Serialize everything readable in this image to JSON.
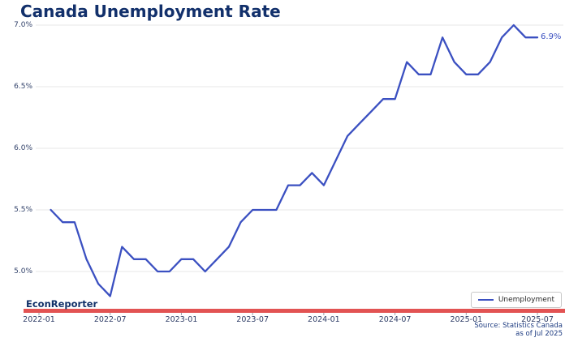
{
  "title": "Canada Unemployment Rate",
  "watermark": "EconReporter",
  "source": {
    "line1": "Source: Statistics Canada",
    "line2": "as of Jul 2025"
  },
  "legend": {
    "label": "Unemployment"
  },
  "annotation": {
    "text": "6.9%"
  },
  "colors": {
    "line": "#3b50c1",
    "title": "#12306b",
    "axis_labels": "#2e3d66",
    "gridline": "#e7e7e7",
    "tick_mark": "#9aa0aa",
    "red_stripe": "#e25353",
    "annotation": "#3b50c1",
    "source_text": "#1d3b80",
    "background": "#ffffff"
  },
  "chart_data": {
    "type": "line",
    "title": "Canada Unemployment Rate",
    "xlabel": "",
    "ylabel": "",
    "grid": true,
    "legend_position": "bottom-right",
    "ylim": [
      4.68,
      7.03
    ],
    "y_ticks": [
      "5.0%",
      "5.5%",
      "6.0%",
      "6.5%",
      "7.0%"
    ],
    "y_tick_values": [
      5.0,
      5.5,
      6.0,
      6.5,
      7.0
    ],
    "x_ticks": [
      "2022-01",
      "2022-07",
      "2023-01",
      "2023-07",
      "2024-01",
      "2024-07",
      "2025-01",
      "2025-07"
    ],
    "x_tick_month_offsets": [
      0,
      6,
      12,
      18,
      24,
      30,
      36,
      42
    ],
    "x": [
      "2022-02",
      "2022-03",
      "2022-04",
      "2022-05",
      "2022-06",
      "2022-07",
      "2022-08",
      "2022-09",
      "2022-10",
      "2022-11",
      "2022-12",
      "2023-01",
      "2023-02",
      "2023-03",
      "2023-04",
      "2023-05",
      "2023-06",
      "2023-07",
      "2023-08",
      "2023-09",
      "2023-10",
      "2023-11",
      "2023-12",
      "2024-01",
      "2024-02",
      "2024-03",
      "2024-04",
      "2024-05",
      "2024-06",
      "2024-07",
      "2024-08",
      "2024-09",
      "2024-10",
      "2024-11",
      "2024-12",
      "2025-01",
      "2025-02",
      "2025-03",
      "2025-04",
      "2025-05",
      "2025-06",
      "2025-07"
    ],
    "series": [
      {
        "name": "Unemployment",
        "values": [
          5.5,
          5.4,
          5.4,
          5.1,
          4.9,
          4.8,
          5.2,
          5.1,
          5.1,
          5.0,
          5.0,
          5.1,
          5.1,
          5.0,
          5.1,
          5.2,
          5.4,
          5.5,
          5.5,
          5.5,
          5.7,
          5.7,
          5.8,
          5.7,
          5.9,
          6.1,
          6.2,
          6.3,
          6.4,
          6.4,
          6.7,
          6.6,
          6.6,
          6.9,
          6.7,
          6.6,
          6.6,
          6.7,
          6.9,
          7.0,
          6.9,
          6.9
        ]
      }
    ],
    "last_value_label": "6.9%"
  }
}
